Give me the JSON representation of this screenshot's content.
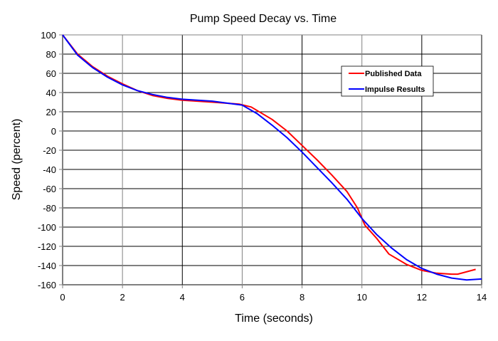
{
  "chart_data": {
    "type": "line",
    "title": "Pump Speed Decay vs. Time",
    "xlabel": "Time (seconds)",
    "ylabel": "Speed (percent)",
    "xlim": [
      0,
      14
    ],
    "ylim": [
      -160,
      100
    ],
    "x_ticks": [
      0,
      2,
      4,
      6,
      8,
      10,
      12,
      14
    ],
    "y_ticks": [
      100,
      80,
      60,
      40,
      20,
      0,
      -20,
      -40,
      -60,
      -80,
      -100,
      -120,
      -140,
      -160
    ],
    "x_tick_labels": [
      "0",
      "2",
      "4",
      "6",
      "8",
      "10",
      "12",
      "14"
    ],
    "y_tick_labels": [
      "100",
      "80",
      "60",
      "40",
      "20",
      "0",
      "-20",
      "-40",
      "-60",
      "-80",
      "-100",
      "-120",
      "-140",
      "-160"
    ],
    "grid": true,
    "legend_position": "upper-right-inside",
    "series": [
      {
        "name": "Published Data",
        "color": "#ff0000",
        "x": [
          0,
          0.5,
          1,
          1.5,
          2,
          2.5,
          3,
          3.5,
          4,
          5,
          5.9,
          6.3,
          7,
          7.5,
          8,
          8.5,
          9,
          9.5,
          9.85,
          10.1,
          10.5,
          10.9,
          11.5,
          12,
          12.5,
          13,
          13.2,
          13.8
        ],
        "y": [
          100,
          80,
          67,
          57,
          49,
          42,
          37,
          34,
          32,
          30,
          28,
          25,
          12,
          0,
          -15,
          -30,
          -46,
          -63,
          -80,
          -98,
          -112,
          -128,
          -139,
          -145,
          -148,
          -149,
          -149,
          -144
        ]
      },
      {
        "name": "Impulse Results",
        "color": "#0000ff",
        "x": [
          0,
          0.5,
          1,
          1.5,
          2,
          2.5,
          3,
          3.5,
          4,
          5,
          6,
          6.5,
          7,
          7.5,
          8,
          8.5,
          9,
          9.5,
          10,
          10.5,
          11,
          11.5,
          12,
          12.5,
          13,
          13.5,
          14
        ],
        "y": [
          100,
          79,
          66,
          56,
          48,
          42,
          38,
          35,
          33,
          31,
          27,
          18,
          6,
          -7,
          -22,
          -38,
          -54,
          -71,
          -91,
          -108,
          -122,
          -134,
          -143,
          -149,
          -153,
          -155,
          -154
        ]
      }
    ]
  }
}
